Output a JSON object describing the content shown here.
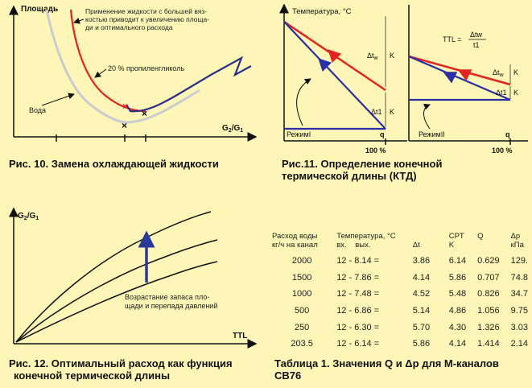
{
  "fig10": {
    "ylabel": "Площадь",
    "xlabel_main": "G",
    "xlabel_sub1": "2",
    "xlabel_mid": "/G",
    "xlabel_sub2": "1",
    "annotation_lines": [
      "Применение жидкости с большей вяз-",
      "костью приводит к увеличению площа-",
      "ди и оптимального расхода"
    ],
    "label_glycol": "20 % пропиленгликоль",
    "label_water": "Вода",
    "caption": "Рис. 10. Замена охлаждающей жидкости",
    "colors": {
      "glycol": "#e8231f",
      "water": "#c9ccd3",
      "envelope": "#2a2f8a",
      "axis": "#111111"
    }
  },
  "fig11": {
    "ylabel": "Температура, °С",
    "label_dtw": "Δt",
    "label_dtw_sub": "w",
    "label_k": "K",
    "label_dt1": "Δt1",
    "label_mode1": "РежимI",
    "label_mode2": "РежимII",
    "xlabel": "q",
    "label_100": "100 %",
    "ttl_label": "TTL =",
    "ttl_num": "Δtw",
    "ttl_den": "t1",
    "caption_lines": [
      "Рис.11. Определение конечной",
      "термической длины (КТД)"
    ],
    "colors": {
      "red": "#e8231f",
      "blue": "#2a2fa8",
      "axis": "#111111"
    }
  },
  "fig12": {
    "ylabel_main": "G",
    "ylabel_sub1": "2",
    "ylabel_mid": "/G",
    "ylabel_sub2": "1",
    "xlabel": "TTL",
    "annotation_lines": [
      "Возрастание запаса пло-",
      "щади и перепада давлений"
    ],
    "caption_lines": [
      "Рис. 12. Оптимальный расход как функция",
      "конечной термической длины"
    ],
    "colors": {
      "curves": "#111111",
      "arrow": "#2a3a9a"
    }
  },
  "table": {
    "headers": {
      "flow_l1": "Расход воды",
      "flow_l2": "кг/ч на канал",
      "temp_l1": "Температура, °С",
      "temp_in": "вх.",
      "temp_out": "вых.",
      "dt": "Δt",
      "cpt_l1": "CPT",
      "cpt_l2": "K",
      "q": "Q",
      "dp_l1": "Δp",
      "dp_l2": "кПа"
    },
    "rows": [
      {
        "flow": "2000",
        "temp": "12  -  8.14  =",
        "dt": "3.86",
        "cpt": "6.14",
        "q": "0.629",
        "dp": "129."
      },
      {
        "flow": "1500",
        "temp": "12  -  7.86  =",
        "dt": "4.14",
        "cpt": "5.86",
        "q": "0.707",
        "dp": "74.8"
      },
      {
        "flow": "1000",
        "temp": "12  -  7.48  =",
        "dt": "4.52",
        "cpt": "5.48",
        "q": "0.826",
        "dp": "34.7"
      },
      {
        "flow": "500",
        "temp": "12  -  6.86  =",
        "dt": "5.14",
        "cpt": "4.86",
        "q": "1.056",
        "dp": "9.75"
      },
      {
        "flow": "250",
        "temp": "12  -  6.30  =",
        "dt": "5.70",
        "cpt": "4.30",
        "q": "1.326",
        "dp": "3.03"
      },
      {
        "flow": "203.5",
        "temp": "12  -  6.14  =",
        "dt": "5.86",
        "cpt": "4.14",
        "q": "1.414",
        "dp": "2.14"
      }
    ],
    "caption_lines": [
      "Таблица 1. Значения Q и Δp для M-каналов",
      "CB76"
    ]
  }
}
